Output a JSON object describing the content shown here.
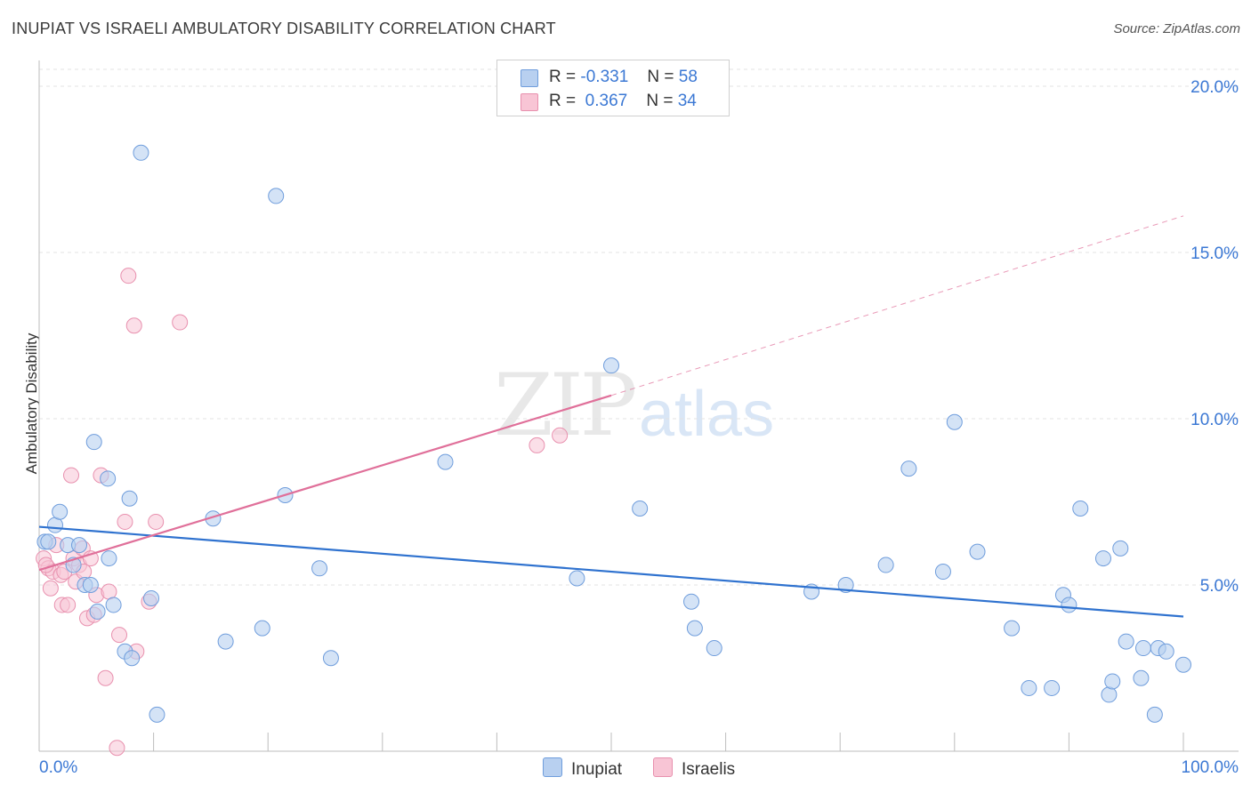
{
  "chart_data": {
    "type": "scatter",
    "title": "INUPIAT VS ISRAELI AMBULATORY DISABILITY CORRELATION CHART",
    "source": "Source: ZipAtlas.com",
    "xlabel": "",
    "ylabel": "Ambulatory Disability",
    "xlim": [
      0,
      100
    ],
    "ylim": [
      0,
      20
    ],
    "x_tick_labels": [
      "0.0%",
      "100.0%"
    ],
    "y_ticks": [
      5,
      10,
      15,
      20
    ],
    "y_tick_labels": [
      "5.0%",
      "10.0%",
      "15.0%",
      "20.0%"
    ],
    "watermark": "ZIPatlas",
    "legend": [
      {
        "label": "R =",
        "r": "-0.331",
        "n_label": "N =",
        "n": "58"
      },
      {
        "label": "R =",
        "r": "0.367",
        "n_label": "N =",
        "n": "34"
      }
    ],
    "colors": {
      "inupiat_fill": "#b8d0f0",
      "inupiat_stroke": "#6f9ddc",
      "inupiat_line": "#2f72cf",
      "israeli_fill": "#f8c5d5",
      "israeli_stroke": "#e890ae",
      "israeli_line": "#e0709a"
    },
    "series": [
      {
        "name": "Inupiat",
        "trend": {
          "x1": 0,
          "y1": 6.75,
          "x2": 100,
          "y2": 4.05
        },
        "points": [
          [
            0.5,
            6.3
          ],
          [
            1.4,
            6.8
          ],
          [
            1.8,
            7.2
          ],
          [
            2.5,
            6.2
          ],
          [
            3,
            5.6
          ],
          [
            3.5,
            6.2
          ],
          [
            4,
            5.0
          ],
          [
            4.5,
            5.0
          ],
          [
            4.8,
            9.3
          ],
          [
            5.1,
            4.2
          ],
          [
            6,
            8.2
          ],
          [
            6.1,
            5.8
          ],
          [
            6.5,
            4.4
          ],
          [
            7.5,
            3.0
          ],
          [
            7.9,
            7.6
          ],
          [
            8.1,
            2.8
          ],
          [
            8.9,
            18.0
          ],
          [
            9.8,
            4.6
          ],
          [
            10.3,
            1.1
          ],
          [
            15.2,
            7.0
          ],
          [
            16.3,
            3.3
          ],
          [
            19.5,
            3.7
          ],
          [
            20.7,
            16.7
          ],
          [
            21.5,
            7.7
          ],
          [
            24.5,
            5.5
          ],
          [
            25.5,
            2.8
          ],
          [
            35.5,
            8.7
          ],
          [
            47,
            5.2
          ],
          [
            50,
            11.6
          ],
          [
            52.5,
            7.3
          ],
          [
            57,
            4.5
          ],
          [
            57.3,
            3.7
          ],
          [
            59,
            3.1
          ],
          [
            67.5,
            4.8
          ],
          [
            70.5,
            5.0
          ],
          [
            74,
            5.6
          ],
          [
            76,
            8.5
          ],
          [
            79,
            5.4
          ],
          [
            80,
            9.9
          ],
          [
            82,
            6.0
          ],
          [
            85,
            3.7
          ],
          [
            86.5,
            1.9
          ],
          [
            88.5,
            1.9
          ],
          [
            89.5,
            4.7
          ],
          [
            90,
            4.4
          ],
          [
            91,
            7.3
          ],
          [
            93,
            5.8
          ],
          [
            93.5,
            1.7
          ],
          [
            93.8,
            2.1
          ],
          [
            94.5,
            6.1
          ],
          [
            95,
            3.3
          ],
          [
            96.3,
            2.2
          ],
          [
            96.5,
            3.1
          ],
          [
            97.5,
            1.1
          ],
          [
            97.8,
            3.1
          ],
          [
            98.5,
            3.0
          ],
          [
            100,
            2.6
          ],
          [
            0.8,
            6.3
          ]
        ]
      },
      {
        "name": "Israelis",
        "trend": {
          "x1": 0,
          "y1": 5.45,
          "x2": 50,
          "y2": 10.7,
          "x_ext": 100,
          "y_ext": 16.1
        },
        "points": [
          [
            0.4,
            5.8
          ],
          [
            0.8,
            5.5
          ],
          [
            1,
            4.9
          ],
          [
            1.2,
            5.4
          ],
          [
            1.5,
            6.2
          ],
          [
            1.9,
            5.3
          ],
          [
            2,
            4.4
          ],
          [
            2.5,
            4.4
          ],
          [
            2.8,
            8.3
          ],
          [
            3,
            5.8
          ],
          [
            3.2,
            5.1
          ],
          [
            3.5,
            5.6
          ],
          [
            3.8,
            6.1
          ],
          [
            4.2,
            4.0
          ],
          [
            4.5,
            5.8
          ],
          [
            4.8,
            4.1
          ],
          [
            5,
            4.7
          ],
          [
            5.4,
            8.3
          ],
          [
            5.8,
            2.2
          ],
          [
            6.1,
            4.8
          ],
          [
            6.8,
            0.1
          ],
          [
            7.0,
            3.5
          ],
          [
            7.5,
            6.9
          ],
          [
            7.8,
            14.3
          ],
          [
            8.3,
            12.8
          ],
          [
            8.5,
            3.0
          ],
          [
            9.6,
            4.5
          ],
          [
            10.2,
            6.9
          ],
          [
            12.3,
            12.9
          ],
          [
            43.5,
            9.2
          ],
          [
            45.5,
            9.5
          ],
          [
            0.6,
            5.6
          ],
          [
            2.2,
            5.4
          ],
          [
            3.9,
            5.4
          ]
        ]
      }
    ]
  },
  "legend_bottom": [
    "Inupiat",
    "Israelis"
  ]
}
